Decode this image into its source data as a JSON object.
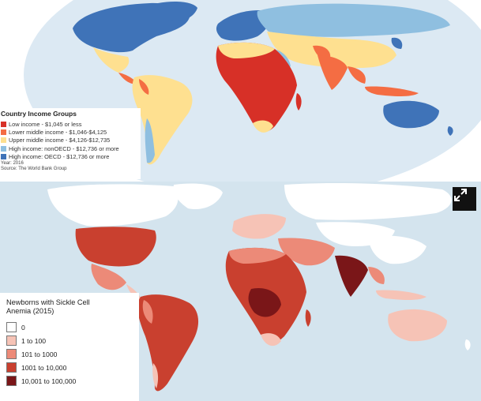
{
  "income_map": {
    "legend": {
      "title": "Country Income Groups",
      "items": [
        {
          "label": "Low income - $1,045 or less",
          "color": "#d73027"
        },
        {
          "label": "Lower middle income - $1,046-$4,125",
          "color": "#f46d43"
        },
        {
          "label": "Upper middle income - $4,126-$12,735",
          "color": "#fee090"
        },
        {
          "label": "High income: nonOECD - $12,736 or more",
          "color": "#8fbfe0"
        },
        {
          "label": "High income: OECD - $12,736 or more",
          "color": "#3f73b8"
        }
      ],
      "year": "Year: 2016",
      "source": "Source: The World Bank Group"
    }
  },
  "sickle_map": {
    "legend": {
      "title_line1": "Newborns with Sickle Cell",
      "title_line2": "Anemia (2015)",
      "items": [
        {
          "label": "0",
          "color": "#ffffff"
        },
        {
          "label": "1 to 100",
          "color": "#f6c3b6"
        },
        {
          "label": "101 to 1000",
          "color": "#ec8a78"
        },
        {
          "label": "1001 to 10,000",
          "color": "#c9402f"
        },
        {
          "label": "10,001 to 100,000",
          "color": "#7a1618"
        }
      ]
    },
    "expand_icon": "expand-arrows-icon"
  }
}
